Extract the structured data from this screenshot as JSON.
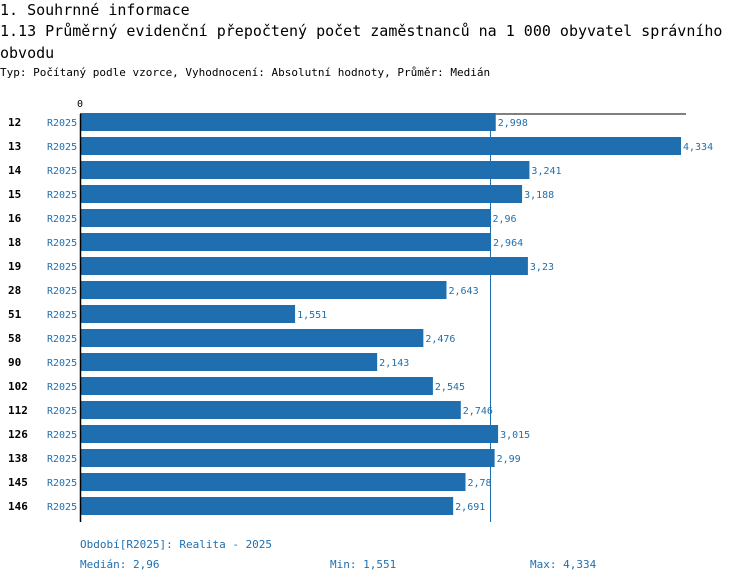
{
  "section_title": "1. Souhrnné informace",
  "chart_title": "1.13 Průměrný evidenční přepočtený počet zaměstnanců na 1 000 obyvatel správního obvodu",
  "subtitle": "Typ: Počítaný podle vzorce, Vyhodnocení: Absolutní hodnoty, Průměr: Medián",
  "chart_data": {
    "type": "bar",
    "orientation": "horizontal",
    "axis_zero_label": "0",
    "categories": [
      "12",
      "13",
      "14",
      "15",
      "16",
      "18",
      "19",
      "28",
      "51",
      "58",
      "90",
      "102",
      "112",
      "126",
      "138",
      "145",
      "146"
    ],
    "series_label": "R2025",
    "values": [
      2.998,
      4.334,
      3.241,
      3.188,
      2.96,
      2.964,
      3.23,
      2.643,
      1.551,
      2.476,
      2.143,
      2.545,
      2.746,
      3.015,
      2.99,
      2.78,
      2.691
    ],
    "value_labels": [
      "2,998",
      "4,334",
      "3,241",
      "3,188",
      "2,96",
      "2,964",
      "3,23",
      "2,643",
      "1,551",
      "2,476",
      "2,143",
      "2,545",
      "2,746",
      "3,015",
      "2,99",
      "2,78",
      "2,691"
    ],
    "xlim": [
      0,
      4.334
    ],
    "median": 2.96,
    "bar_color": "#1f6fb0"
  },
  "footer": {
    "period": "Období[R2025]: Realita - 2025",
    "median": "Medián: 2,96",
    "min": "Min: 1,551",
    "max": "Max: 4,334"
  }
}
